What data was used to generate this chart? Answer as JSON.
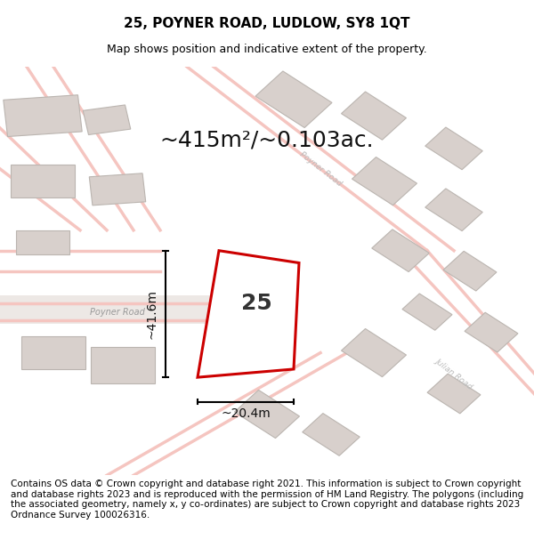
{
  "title": "25, POYNER ROAD, LUDLOW, SY8 1QT",
  "subtitle": "Map shows position and indicative extent of the property.",
  "area_text": "~415m²/~0.103ac.",
  "label_25": "25",
  "dim_height": "~41.6m",
  "dim_width": "~20.4m",
  "footer": "Contains OS data © Crown copyright and database right 2021. This information is subject to Crown copyright and database rights 2023 and is reproduced with the permission of HM Land Registry. The polygons (including the associated geometry, namely x, y co-ordinates) are subject to Crown copyright and database rights 2023 Ordnance Survey 100026316.",
  "bg_color": "#f5f0ee",
  "map_bg": "#f0ebe8",
  "road_color": "#f5c5c0",
  "building_color": "#d8d0cc",
  "plot_color": "#cc0000",
  "plot_fill": "none",
  "footer_bg": "#ffffff",
  "title_fontsize": 11,
  "subtitle_fontsize": 9,
  "area_fontsize": 18,
  "dim_fontsize": 10,
  "footer_fontsize": 7.5
}
